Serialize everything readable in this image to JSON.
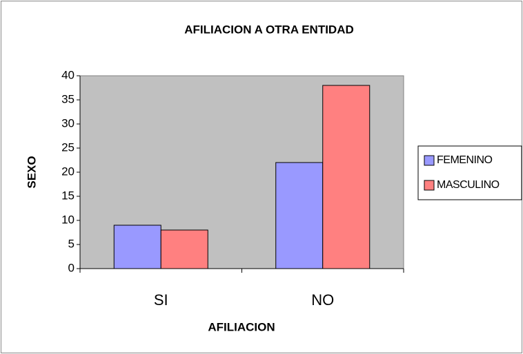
{
  "chart_data": {
    "type": "bar",
    "title": "AFILIACION A OTRA ENTIDAD",
    "x_label": "AFILIACION",
    "y_label": "SEXO",
    "categories": [
      "SI",
      "NO"
    ],
    "series": [
      {
        "name": "FEMENINO",
        "color": "#9999ff",
        "values": [
          9,
          22
        ]
      },
      {
        "name": "MASCULINO",
        "color": "#ff8080",
        "values": [
          8,
          38
        ]
      }
    ],
    "ylim": [
      0,
      40
    ],
    "yticks": [
      0,
      5,
      10,
      15,
      20,
      25,
      30,
      35,
      40
    ],
    "legend": "right",
    "plot_background": "#c0c0c0"
  }
}
